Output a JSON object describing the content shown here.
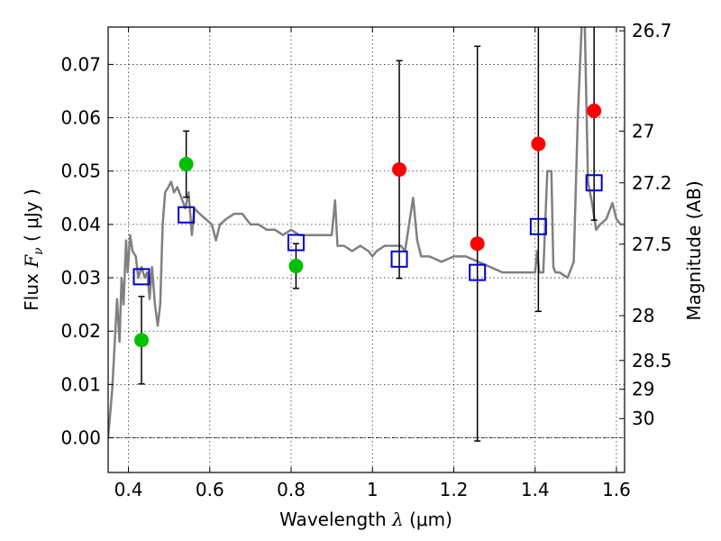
{
  "chart_data": {
    "type": "scatter",
    "xlabel": {
      "prefix": "Wavelength  ",
      "symbol": "λ",
      "unit": " (μm)"
    },
    "ylabel": {
      "prefix": "Flux  ",
      "symbol": "F",
      "subscript": "ν",
      "unit": "  ( μJy )"
    },
    "y2label": "Magnitude (AB)",
    "xlim": [
      0.35,
      1.62
    ],
    "ylim": [
      -0.0065,
      0.077
    ],
    "grid": true,
    "x_ticks": [
      0.4,
      0.6,
      0.8,
      1.0,
      1.2,
      1.4,
      1.6
    ],
    "x_tick_labels": [
      "0.4",
      "0.6",
      "0.8",
      "1",
      "1.2",
      "1.4",
      "1.6"
    ],
    "y_ticks": [
      0.0,
      0.01,
      0.02,
      0.03,
      0.04,
      0.05,
      0.06,
      0.07
    ],
    "y_tick_labels": [
      "0.00",
      "0.01",
      "0.02",
      "0.03",
      "0.04",
      "0.05",
      "0.06",
      "0.07"
    ],
    "y2_ticks": [
      {
        "label": "26.7",
        "flux": 0.0763
      },
      {
        "label": "27",
        "flux": 0.0575
      },
      {
        "label": "27.2",
        "flux": 0.0478
      },
      {
        "label": "27.5",
        "flux": 0.0363
      },
      {
        "label": "28",
        "flux": 0.0229
      },
      {
        "label": "28.5",
        "flux": 0.0145
      },
      {
        "label": "29",
        "flux": 0.0091
      },
      {
        "label": "30",
        "flux": 0.0036
      }
    ],
    "series": [
      {
        "kind": "line",
        "color": "#808080",
        "points": [
          [
            0.35,
            0.0
          ],
          [
            0.36,
            0.009
          ],
          [
            0.372,
            0.026
          ],
          [
            0.378,
            0.018
          ],
          [
            0.383,
            0.03
          ],
          [
            0.388,
            0.025
          ],
          [
            0.394,
            0.037
          ],
          [
            0.398,
            0.031
          ],
          [
            0.404,
            0.038
          ],
          [
            0.41,
            0.035
          ],
          [
            0.418,
            0.034
          ],
          [
            0.424,
            0.03
          ],
          [
            0.432,
            0.032
          ],
          [
            0.44,
            0.03
          ],
          [
            0.446,
            0.031
          ],
          [
            0.452,
            0.026
          ],
          [
            0.458,
            0.032
          ],
          [
            0.465,
            0.025
          ],
          [
            0.472,
            0.021
          ],
          [
            0.478,
            0.025
          ],
          [
            0.484,
            0.04
          ],
          [
            0.49,
            0.046
          ],
          [
            0.498,
            0.047
          ],
          [
            0.505,
            0.048
          ],
          [
            0.512,
            0.046
          ],
          [
            0.52,
            0.047
          ],
          [
            0.53,
            0.045
          ],
          [
            0.54,
            0.043
          ],
          [
            0.548,
            0.046
          ],
          [
            0.556,
            0.038
          ],
          [
            0.562,
            0.043
          ],
          [
            0.575,
            0.042
          ],
          [
            0.59,
            0.041
          ],
          [
            0.605,
            0.04
          ],
          [
            0.615,
            0.037
          ],
          [
            0.625,
            0.04
          ],
          [
            0.64,
            0.041
          ],
          [
            0.66,
            0.042
          ],
          [
            0.68,
            0.042
          ],
          [
            0.7,
            0.04
          ],
          [
            0.72,
            0.04
          ],
          [
            0.74,
            0.039
          ],
          [
            0.76,
            0.039
          ],
          [
            0.78,
            0.038
          ],
          [
            0.8,
            0.039
          ],
          [
            0.82,
            0.038
          ],
          [
            0.84,
            0.038
          ],
          [
            0.86,
            0.038
          ],
          [
            0.88,
            0.038
          ],
          [
            0.9,
            0.038
          ],
          [
            0.908,
            0.0445
          ],
          [
            0.914,
            0.036
          ],
          [
            0.93,
            0.036
          ],
          [
            0.95,
            0.035
          ],
          [
            0.97,
            0.036
          ],
          [
            0.99,
            0.035
          ],
          [
            1.0,
            0.034
          ],
          [
            1.01,
            0.035
          ],
          [
            1.03,
            0.036
          ],
          [
            1.05,
            0.036
          ],
          [
            1.07,
            0.036
          ],
          [
            1.08,
            0.035
          ],
          [
            1.09,
            0.04
          ],
          [
            1.1,
            0.045
          ],
          [
            1.11,
            0.037
          ],
          [
            1.12,
            0.034
          ],
          [
            1.14,
            0.034
          ],
          [
            1.17,
            0.033
          ],
          [
            1.2,
            0.034
          ],
          [
            1.23,
            0.034
          ],
          [
            1.26,
            0.033
          ],
          [
            1.29,
            0.032
          ],
          [
            1.32,
            0.031
          ],
          [
            1.35,
            0.031
          ],
          [
            1.38,
            0.031
          ],
          [
            1.4,
            0.031
          ],
          [
            1.405,
            0.035
          ],
          [
            1.41,
            0.031
          ],
          [
            1.42,
            0.031
          ],
          [
            1.43,
            0.05
          ],
          [
            1.44,
            0.05
          ],
          [
            1.445,
            0.032
          ],
          [
            1.45,
            0.031
          ],
          [
            1.46,
            0.031
          ],
          [
            1.48,
            0.03
          ],
          [
            1.495,
            0.033
          ],
          [
            1.505,
            0.06
          ],
          [
            1.515,
            0.078
          ],
          [
            1.522,
            0.078
          ],
          [
            1.53,
            0.048
          ],
          [
            1.54,
            0.044
          ],
          [
            1.55,
            0.039
          ],
          [
            1.56,
            0.04
          ],
          [
            1.575,
            0.041
          ],
          [
            1.59,
            0.044
          ],
          [
            1.6,
            0.041
          ],
          [
            1.61,
            0.04
          ],
          [
            1.62,
            0.04
          ]
        ]
      },
      {
        "kind": "points",
        "marker": "circle",
        "color": "#00c000",
        "points": [
          [
            0.432,
            0.0183
          ],
          [
            0.542,
            0.0513
          ],
          [
            0.812,
            0.0322
          ]
        ],
        "errors": [
          0.0082,
          0.0062,
          0.0042
        ]
      },
      {
        "kind": "points",
        "marker": "circle",
        "color": "#ff0000",
        "points": [
          [
            1.066,
            0.0503
          ],
          [
            1.258,
            0.0364
          ],
          [
            1.408,
            0.0551
          ],
          [
            1.545,
            0.0613
          ]
        ],
        "errors": [
          0.0204,
          0.037,
          0.0314,
          0.0205
        ]
      },
      {
        "kind": "points",
        "marker": "square",
        "color": "#0000cc",
        "points": [
          [
            0.432,
            0.0302
          ],
          [
            0.542,
            0.0418
          ],
          [
            0.812,
            0.0366
          ],
          [
            1.066,
            0.0335
          ],
          [
            1.258,
            0.031
          ],
          [
            1.408,
            0.0396
          ],
          [
            1.545,
            0.0478
          ]
        ]
      }
    ]
  }
}
